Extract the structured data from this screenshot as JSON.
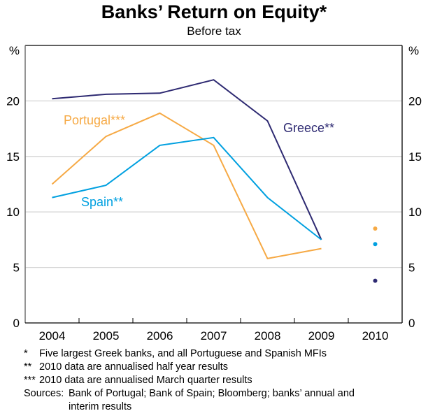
{
  "chart_data": {
    "type": "line",
    "title": "Banks’ Return on Equity*",
    "subtitle": "Before tax",
    "xlabel": "",
    "ylabel_left": "%",
    "ylabel_right": "%",
    "categories": [
      "2004",
      "2005",
      "2006",
      "2007",
      "2008",
      "2009",
      "2010"
    ],
    "ylim": [
      0,
      25
    ],
    "yticks": [
      0,
      5,
      10,
      15,
      20
    ],
    "ytick_labels": [
      "0",
      "5",
      "10",
      "15",
      "20"
    ],
    "grid": true,
    "series": [
      {
        "name": "Greece",
        "label": "Greece**",
        "color": "#2E2A72",
        "values": [
          20.2,
          20.6,
          20.7,
          21.9,
          18.2,
          7.5,
          null
        ],
        "point_2010": 3.8
      },
      {
        "name": "Portugal",
        "label": "Portugal***",
        "color": "#F6A944",
        "values": [
          12.5,
          16.8,
          18.9,
          16.0,
          5.8,
          6.7,
          null
        ],
        "point_2010": 8.5
      },
      {
        "name": "Spain",
        "label": "Spain**",
        "color": "#00A0E0",
        "values": [
          11.3,
          12.4,
          16.0,
          16.7,
          11.3,
          7.5,
          null
        ],
        "point_2010": 7.1
      }
    ]
  },
  "notes": [
    {
      "mark": "*",
      "text": "Five largest Greek banks, and all Portuguese and Spanish MFIs"
    },
    {
      "mark": "**",
      "text": "2010 data are annualised half year results"
    },
    {
      "mark": "***",
      "text": "2010 data are annualised March quarter results"
    }
  ],
  "sources": {
    "label": "Sources:",
    "line1": "Bank of Portugal; Bank of Spain; Bloomberg; banks’ annual and",
    "line2": "interim results"
  }
}
